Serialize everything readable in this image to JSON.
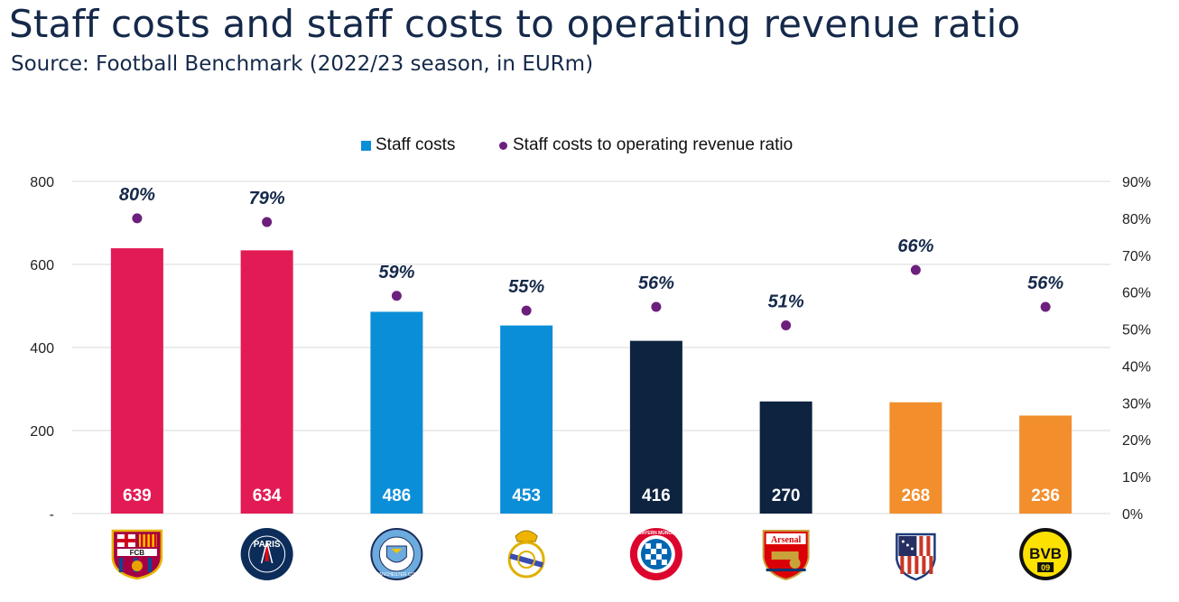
{
  "title": "Staff costs and staff costs to operating revenue ratio",
  "subtitle": "Source: Football Benchmark (2022/23 season, in EURm)",
  "legend": {
    "bars_label": "Staff costs",
    "dots_label": "Staff costs to operating revenue ratio",
    "bars_color": "#0b8ed8",
    "dots_color": "#6c1f7c"
  },
  "chart_data": {
    "type": "bar",
    "categories": [
      "FC Barcelona",
      "Paris Saint-Germain",
      "Manchester City",
      "Real Madrid",
      "FC Bayern München",
      "Arsenal",
      "Atlético de Madrid",
      "BVB 09"
    ],
    "series": [
      {
        "name": "Staff costs",
        "values": [
          639,
          634,
          486,
          453,
          416,
          270,
          268,
          236
        ],
        "axis": "left"
      },
      {
        "name": "Staff costs to operating revenue ratio",
        "values": [
          80,
          79,
          59,
          55,
          56,
          51,
          66,
          56
        ],
        "value_labels": [
          "80%",
          "79%",
          "59%",
          "55%",
          "56%",
          "51%",
          "66%",
          "56%"
        ],
        "axis": "right",
        "style": "dots"
      }
    ],
    "bar_colors": [
      "#e31b54",
      "#e31b54",
      "#0b8ed8",
      "#0b8ed8",
      "#0d2340",
      "#0d2340",
      "#f28e2c",
      "#f28e2c"
    ],
    "dot_color": "#6c1f7c",
    "label_color": "#15294a",
    "ylim_left": [
      0,
      800
    ],
    "yticks_left": [
      0,
      200,
      400,
      600,
      800
    ],
    "ytick_labels_left": [
      "-",
      "200",
      "400",
      "600",
      "800"
    ],
    "ylim_right": [
      0,
      90
    ],
    "yticks_right": [
      0,
      10,
      20,
      30,
      40,
      50,
      60,
      70,
      80,
      90
    ],
    "ytick_labels_right": [
      "0%",
      "10%",
      "20%",
      "30%",
      "40%",
      "50%",
      "60%",
      "70%",
      "80%",
      "90%"
    ],
    "grid": true,
    "legend_position": "top"
  },
  "logos": [
    {
      "name": "barcelona-logo",
      "text": "FCB"
    },
    {
      "name": "psg-logo",
      "text": "PARIS"
    },
    {
      "name": "man-city-logo",
      "text": "MANCHESTER CITY"
    },
    {
      "name": "real-madrid-logo",
      "text": ""
    },
    {
      "name": "bayern-logo",
      "text": "FC BAYERN MÜNCHEN"
    },
    {
      "name": "arsenal-logo",
      "text": "Arsenal"
    },
    {
      "name": "atletico-logo",
      "text": ""
    },
    {
      "name": "bvb-logo",
      "text": "BVB 09"
    }
  ]
}
